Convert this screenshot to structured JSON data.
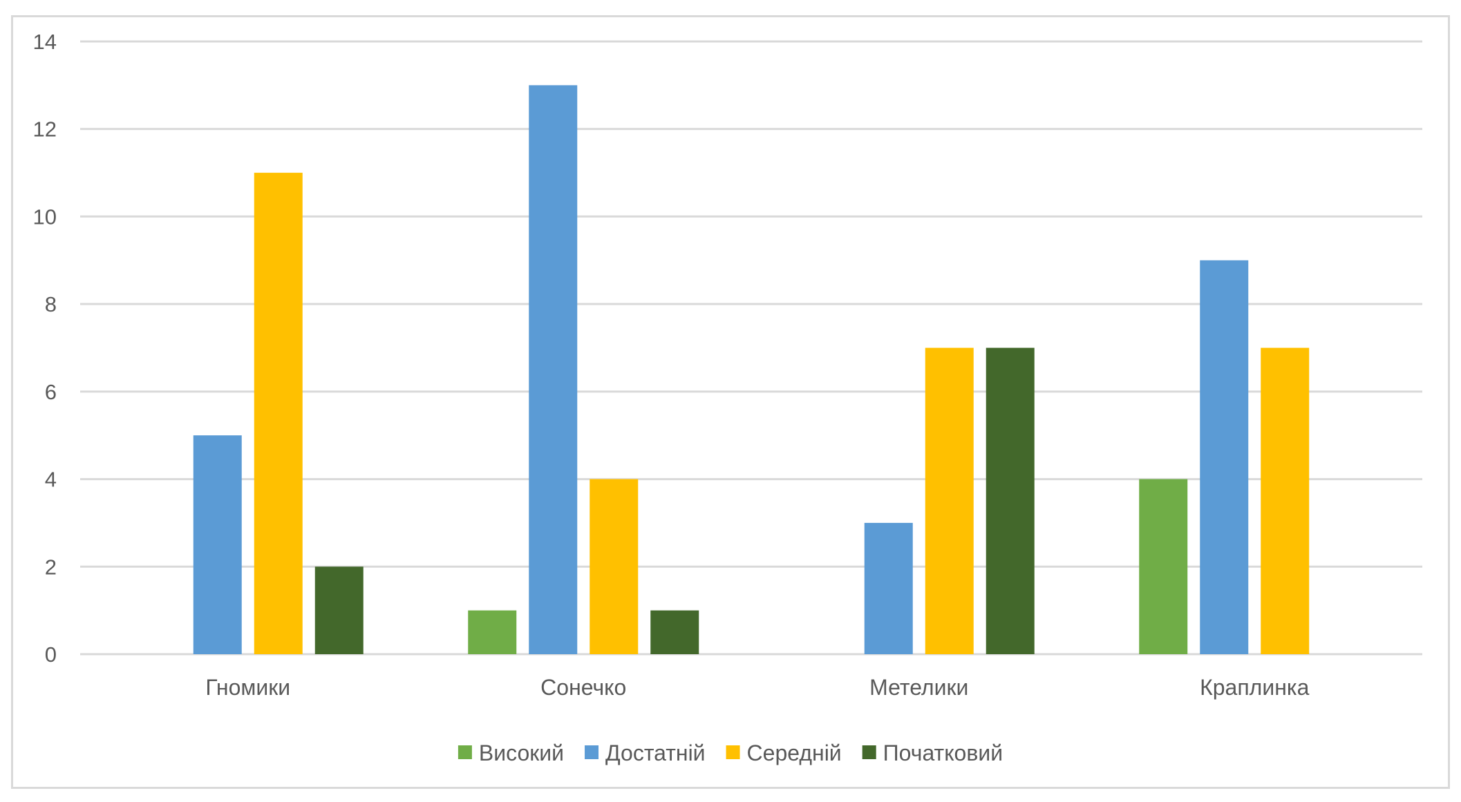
{
  "chart_data": {
    "type": "bar",
    "categories": [
      "Гномики",
      "Сонечко",
      "Метелики",
      "Краплинка"
    ],
    "series": [
      {
        "name": "Високий",
        "color": "#70ad47",
        "values": [
          0,
          1,
          0,
          4
        ]
      },
      {
        "name": "Достатній",
        "color": "#5b9bd5",
        "values": [
          5,
          13,
          3,
          9
        ]
      },
      {
        "name": "Середній",
        "color": "#ffc000",
        "values": [
          11,
          4,
          7,
          7
        ]
      },
      {
        "name": "Початковий",
        "color": "#43682b",
        "values": [
          2,
          1,
          7,
          0
        ]
      }
    ],
    "yticks": [
      "0",
      "2",
      "4",
      "6",
      "8",
      "10",
      "12",
      "14"
    ],
    "ylim": [
      0,
      14
    ],
    "title": "",
    "xlabel": "",
    "ylabel": "",
    "grid": true,
    "legend_position": "bottom"
  }
}
